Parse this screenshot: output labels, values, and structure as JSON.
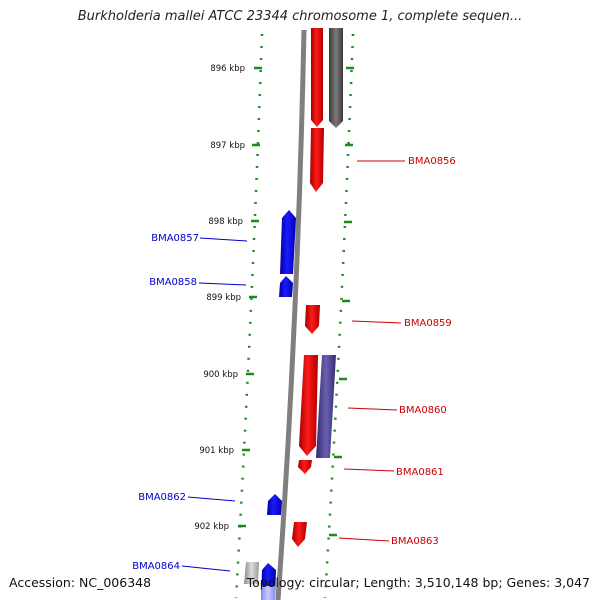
{
  "title": "Burkholderia mallei ATCC 23344 chromosome 1, complete sequen...",
  "footer": {
    "accession": "Accession: NC_006348",
    "summary": "Topology: circular; Length: 3,510,148 bp; Genes: 3,047"
  },
  "colors": {
    "forward_gene": "#ff0000",
    "reverse_gene": "#0000ff",
    "other_feature": "#555555",
    "paired_feature": "#5a4f9a",
    "ticks": "#1b8a1b",
    "backbone": "#808080"
  },
  "scale": {
    "ticks": [
      "896 kbp",
      "897 kbp",
      "898 kbp",
      "899 kbp",
      "900 kbp",
      "901 kbp",
      "902 kbp"
    ]
  },
  "genes": [
    {
      "label": "BMA0856",
      "strand": "forward"
    },
    {
      "label": "BMA0857",
      "strand": "reverse"
    },
    {
      "label": "BMA0858",
      "strand": "reverse"
    },
    {
      "label": "BMA0859",
      "strand": "forward"
    },
    {
      "label": "BMA0860",
      "strand": "forward"
    },
    {
      "label": "BMA0861",
      "strand": "forward"
    },
    {
      "label": "BMA0862",
      "strand": "reverse"
    },
    {
      "label": "BMA0863",
      "strand": "forward"
    },
    {
      "label": "BMA0864",
      "strand": "reverse"
    }
  ]
}
